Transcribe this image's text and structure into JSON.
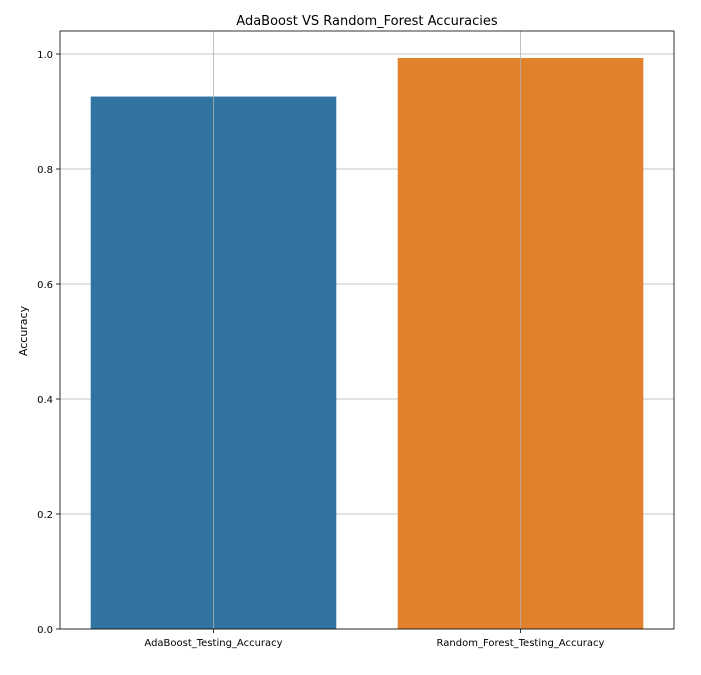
{
  "chart_data": {
    "type": "bar",
    "title": "AdaBoost VS Random_Forest Accuracies",
    "xlabel": "",
    "ylabel": "Accuracy",
    "categories": [
      "AdaBoost_Testing_Accuracy",
      "Random_Forest_Testing_Accuracy"
    ],
    "values": [
      0.926,
      0.993
    ],
    "colors": [
      "#3274a1",
      "#e1812c"
    ],
    "ylim": [
      0,
      1.04
    ],
    "yticks": [
      "0.0",
      "0.2",
      "0.4",
      "0.6",
      "0.8",
      "1.0"
    ],
    "grid": true,
    "grid_color": "#b0b0b0"
  }
}
